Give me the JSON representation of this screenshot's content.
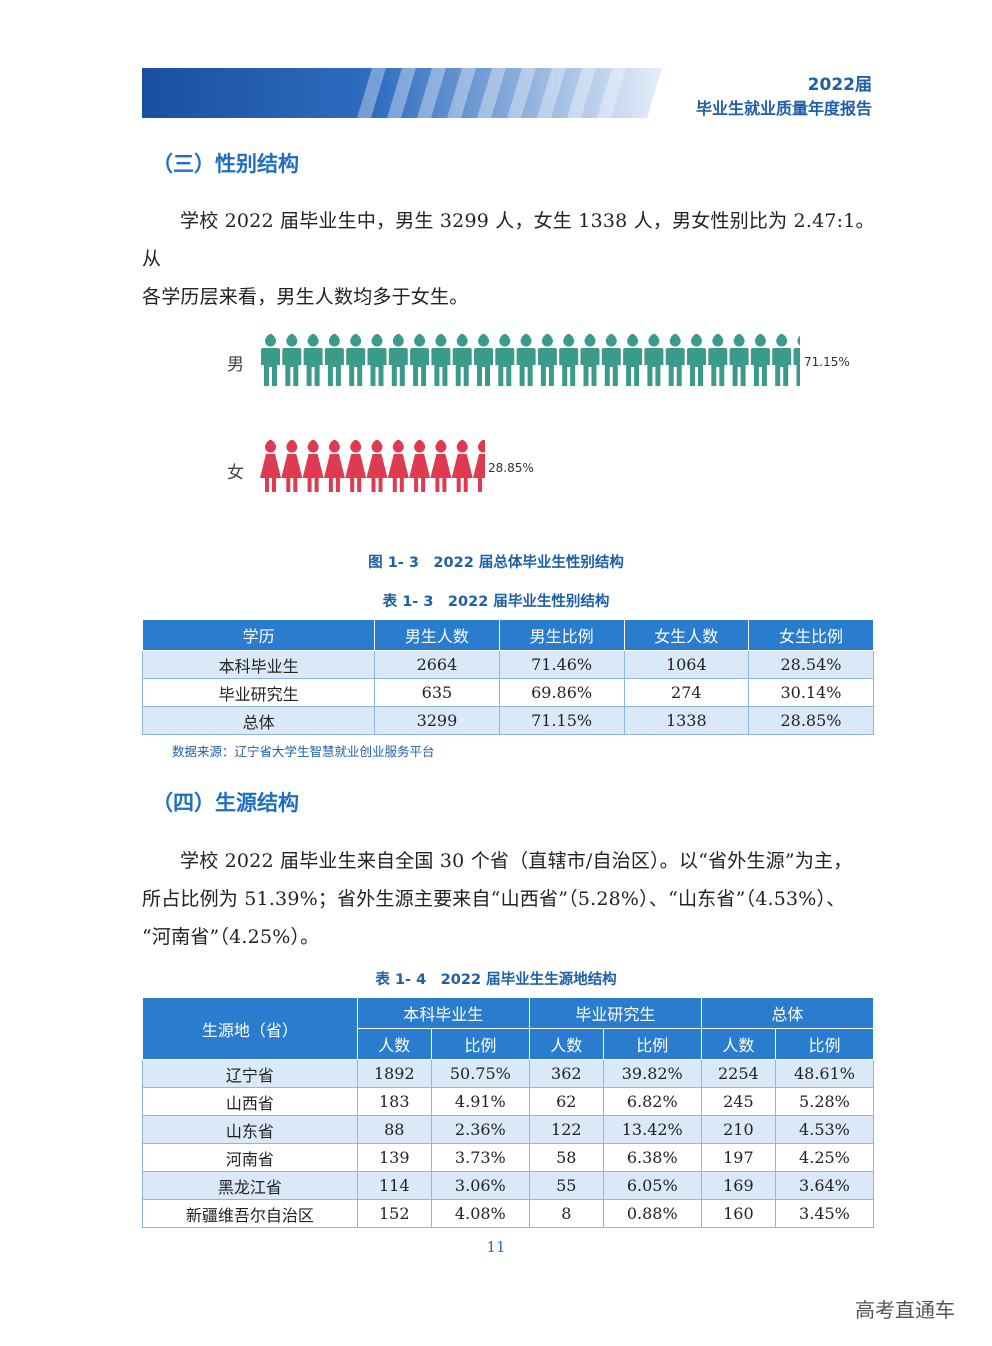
{
  "header": {
    "year": "2022届",
    "title": "毕业生就业质量年度报告"
  },
  "section3": {
    "title": "（三）性别结构",
    "para_line1": "学校 2022 届毕业生中，男生 3299 人，女生 1338 人，男女性别比为 2.47:1。从",
    "para_line2": "各学历层来看，男生人数均多于女生。"
  },
  "pictogram": {
    "male_label": "男",
    "male_pct": "71.15%",
    "female_label": "女",
    "female_pct": "28.85%",
    "colors": {
      "male": "#3c9a8a",
      "female": "#de3a50"
    }
  },
  "chart_data": {
    "type": "bar",
    "categories": [
      "男",
      "女"
    ],
    "values": [
      71.15,
      28.85
    ],
    "title": "图 1- 3　2022 届总体毕业生性别结构"
  },
  "figure_caption": "图 1- 3　2022 届总体毕业生性别结构",
  "table3": {
    "caption": "表 1- 3　2022 届毕业生性别结构",
    "headers": [
      "学历",
      "男生人数",
      "男生比例",
      "女生人数",
      "女生比例"
    ],
    "rows": [
      [
        "本科毕业生",
        "2664",
        "71.46%",
        "1064",
        "28.54%"
      ],
      [
        "毕业研究生",
        "635",
        "69.86%",
        "274",
        "30.14%"
      ],
      [
        "总体",
        "3299",
        "71.15%",
        "1338",
        "28.85%"
      ]
    ],
    "source": "数据来源：辽宁省大学生智慧就业创业服务平台"
  },
  "section4": {
    "title": "（四）生源结构",
    "para_line1": "学校 2022 届毕业生来自全国 30 个省（直辖市/自治区）。以“省外生源”为主，",
    "para_line2": "所占比例为 51.39%；省外生源主要来自“山西省”（5.28%）、“山东省”（4.53%）、",
    "para_line3": "“河南省”（4.25%）。"
  },
  "table4": {
    "caption": "表 1- 4　2022 届毕业生生源地结构",
    "header_origin": "生源地（省）",
    "groups": [
      "本科毕业生",
      "毕业研究生",
      "总体"
    ],
    "sub_headers": [
      "人数",
      "比例",
      "人数",
      "比例",
      "人数",
      "比例"
    ],
    "rows": [
      [
        "辽宁省",
        "1892",
        "50.75%",
        "362",
        "39.82%",
        "2254",
        "48.61%"
      ],
      [
        "山西省",
        "183",
        "4.91%",
        "62",
        "6.82%",
        "245",
        "5.28%"
      ],
      [
        "山东省",
        "88",
        "2.36%",
        "122",
        "13.42%",
        "210",
        "4.53%"
      ],
      [
        "河南省",
        "139",
        "3.73%",
        "58",
        "6.38%",
        "197",
        "4.25%"
      ],
      [
        "黑龙江省",
        "114",
        "3.06%",
        "55",
        "6.05%",
        "169",
        "3.64%"
      ],
      [
        "新疆维吾尔自治区",
        "152",
        "4.08%",
        "8",
        "0.88%",
        "160",
        "3.45%"
      ]
    ]
  },
  "page_number": "11",
  "watermark": "高考直通车"
}
